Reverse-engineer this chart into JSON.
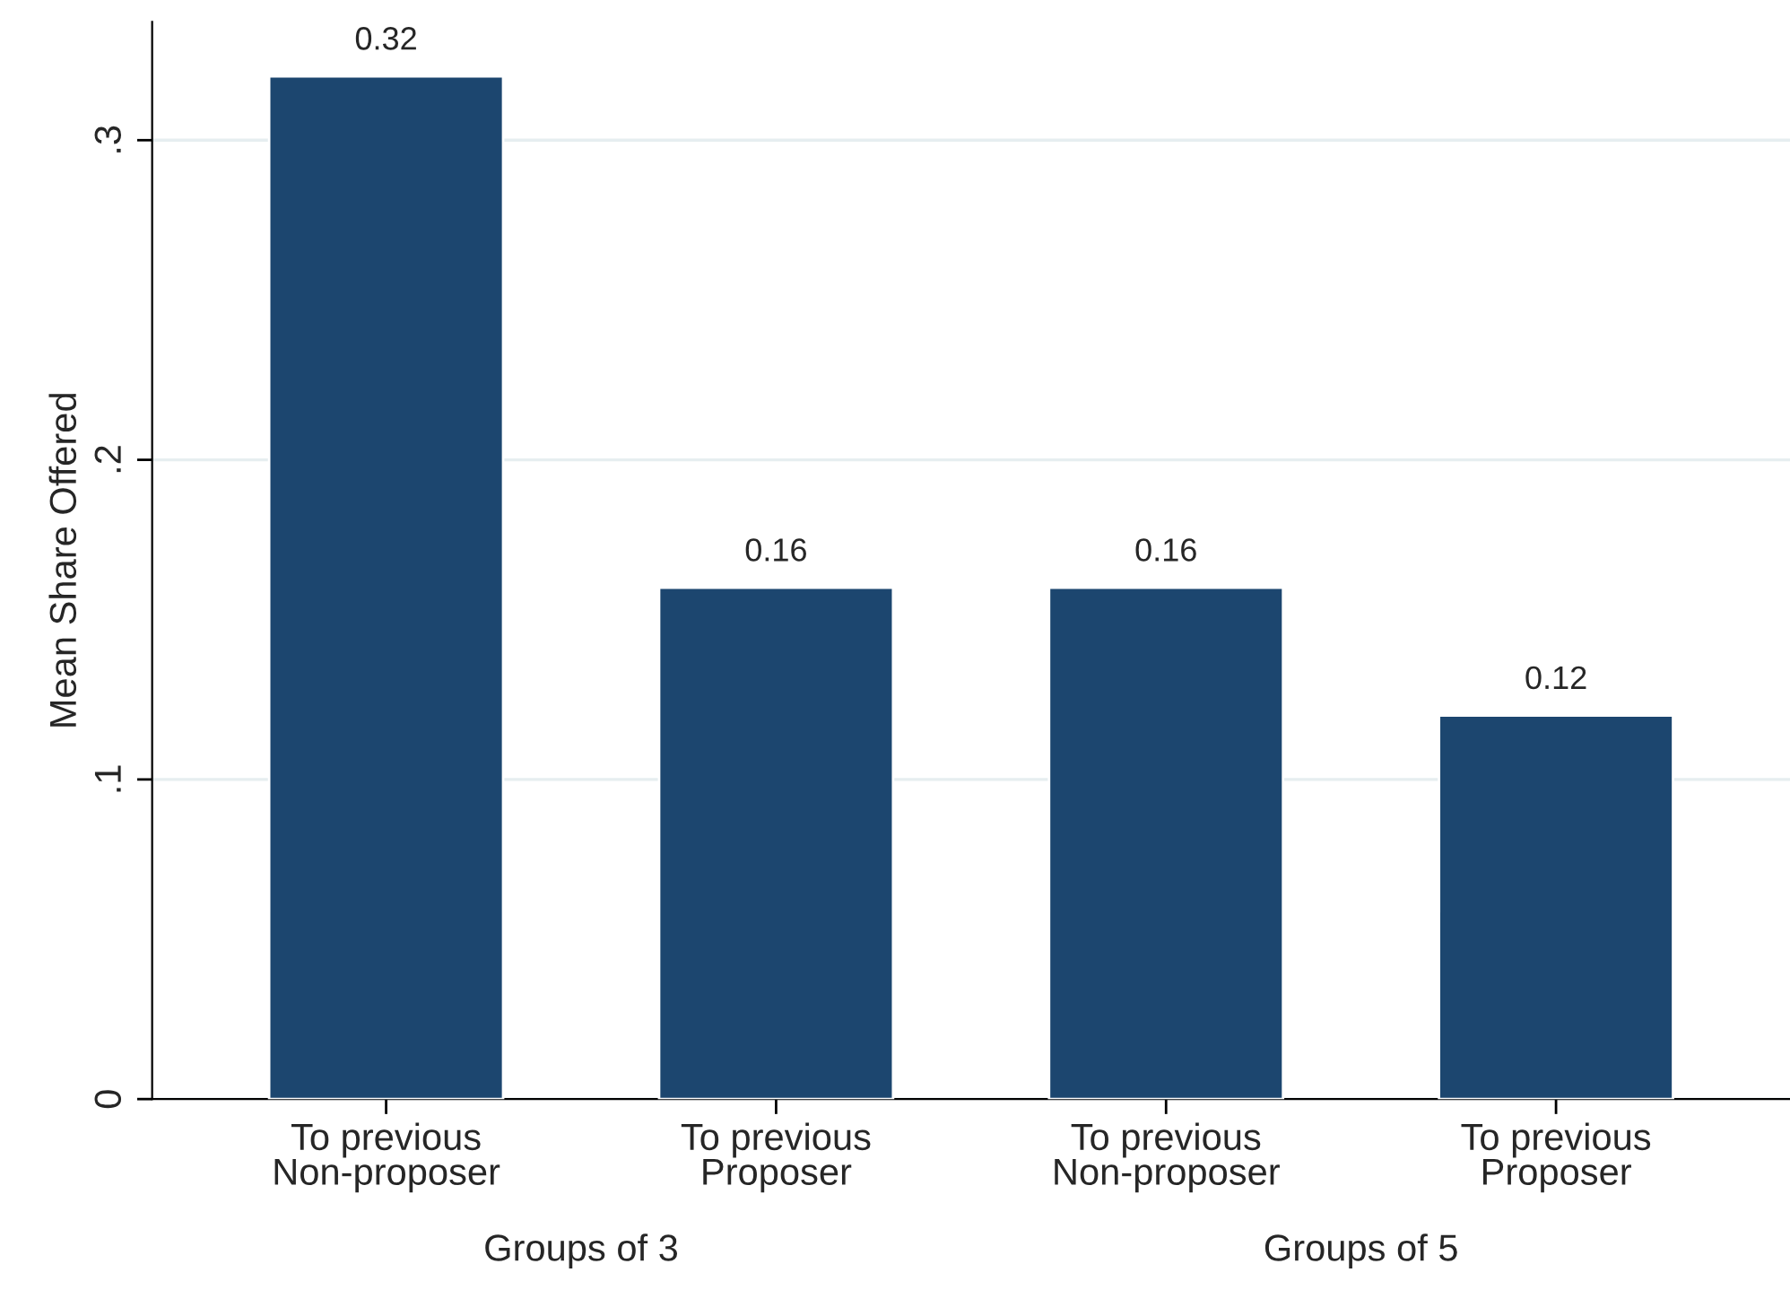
{
  "chart_data": {
    "type": "bar",
    "ylabel": "Mean Share Offered",
    "categories": [
      "To previous\nNon-proposer",
      "To previous\nProposer",
      "To previous\nNon-proposer",
      "To previous\nProposer"
    ],
    "values": [
      0.32,
      0.16,
      0.16,
      0.12
    ],
    "color": "#1c466f",
    "ylim": [
      0,
      0.337
    ],
    "yticks": [
      0,
      {
        "value": 0.1,
        "label": ".1"
      },
      {
        "value": 0.2,
        "label": ".2"
      },
      {
        "value": 0.3,
        "label": ".3"
      }
    ],
    "grid": "y",
    "data_labels": true,
    "annotations": [
      "Groups of 3",
      "Groups of 5"
    ]
  }
}
